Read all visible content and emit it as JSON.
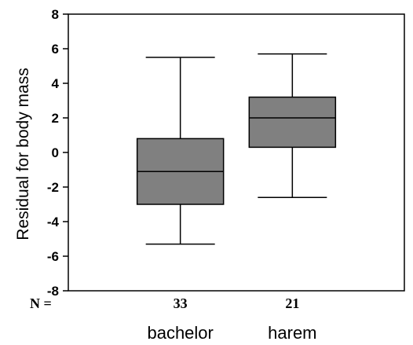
{
  "chart_data": {
    "type": "boxplot",
    "ylabel": "Residual for body mass",
    "ylim": [
      -8,
      8
    ],
    "yticks": [
      "8",
      "6",
      "4",
      "2",
      "0",
      "-2",
      "-4",
      "-6",
      "-8"
    ],
    "n_prefix": "N =",
    "box_color": "#808080",
    "groups": [
      {
        "label": "bachelor",
        "n": "33",
        "whisker_low": -5.3,
        "q1": -3.0,
        "median": -1.1,
        "q3": 0.8,
        "whisker_high": 5.5
      },
      {
        "label": "harem",
        "n": "21",
        "whisker_low": -2.6,
        "q1": 0.3,
        "median": 2.0,
        "q3": 3.2,
        "whisker_high": 5.7
      }
    ]
  }
}
